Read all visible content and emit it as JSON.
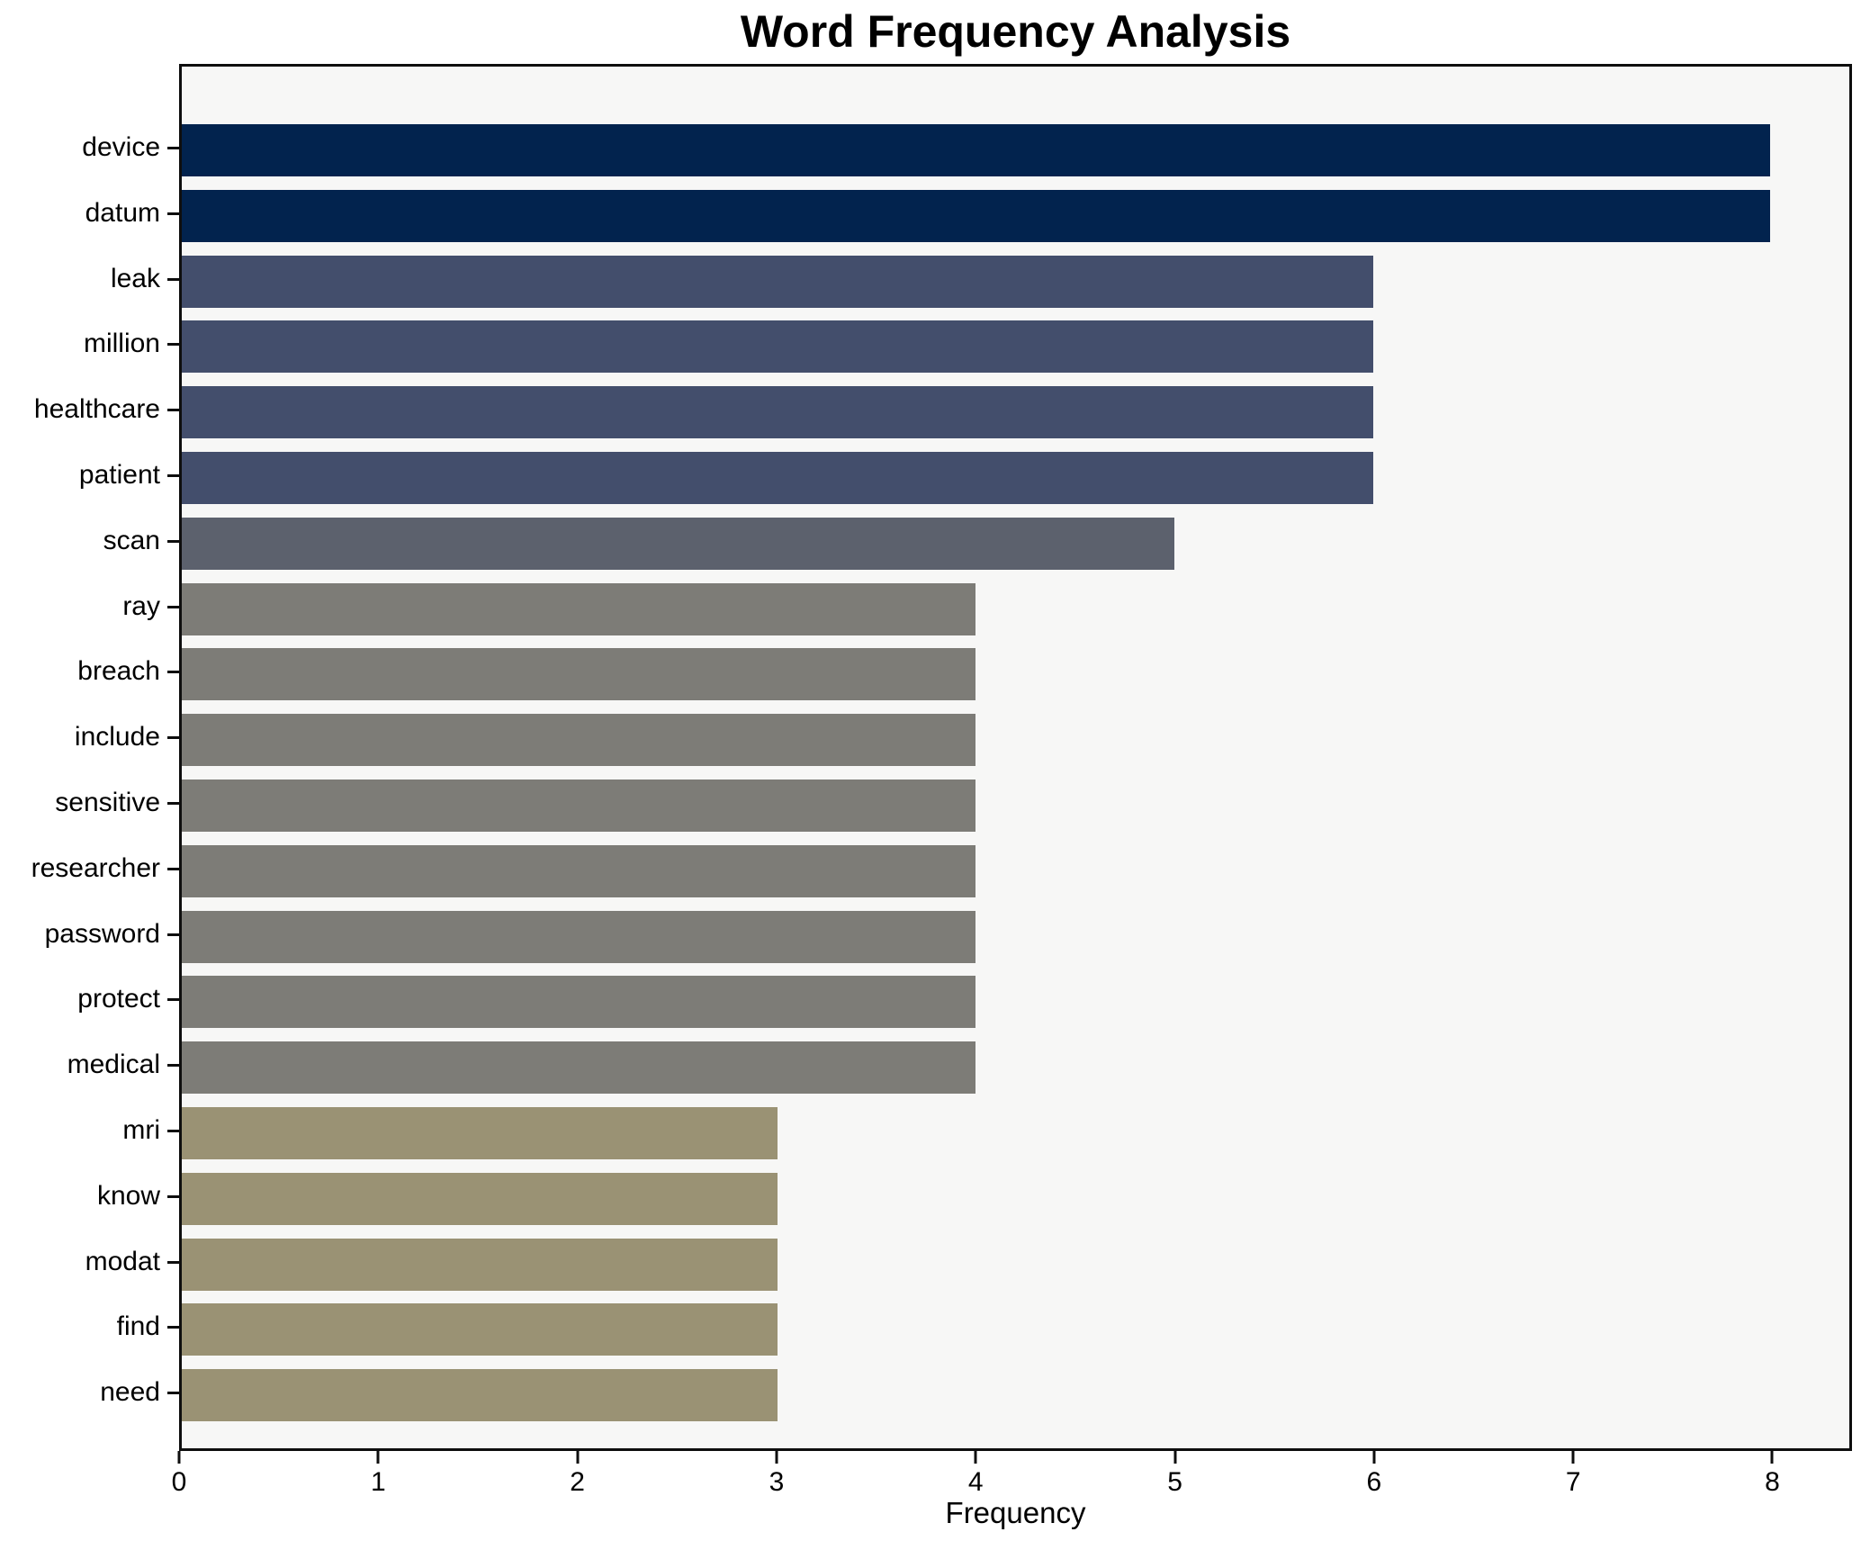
{
  "title": "Word Frequency Analysis",
  "chart_data": {
    "type": "bar",
    "orientation": "horizontal",
    "title": "Word Frequency Analysis",
    "xlabel": "Frequency",
    "ylabel": "",
    "categories": [
      "device",
      "datum",
      "leak",
      "million",
      "healthcare",
      "patient",
      "scan",
      "ray",
      "breach",
      "include",
      "sensitive",
      "researcher",
      "password",
      "protect",
      "medical",
      "mri",
      "know",
      "modat",
      "find",
      "need"
    ],
    "values": [
      8,
      8,
      6,
      6,
      6,
      6,
      5,
      4,
      4,
      4,
      4,
      4,
      4,
      4,
      4,
      3,
      3,
      3,
      3,
      3
    ],
    "xlim": [
      0,
      8.4
    ],
    "xticks": [
      0,
      1,
      2,
      3,
      4,
      5,
      6,
      7,
      8
    ],
    "grid": false,
    "legend": false,
    "colors": {
      "bar_color_by_value": {
        "8": "#02234e",
        "6": "#434e6c",
        "5": "#5c616d",
        "4": "#7d7c77",
        "3": "#9a9274"
      },
      "plot_background": "#f7f7f6",
      "figure_background": "#ffffff",
      "spine_color": "#0e0e0e",
      "text_color": "#000000"
    }
  }
}
